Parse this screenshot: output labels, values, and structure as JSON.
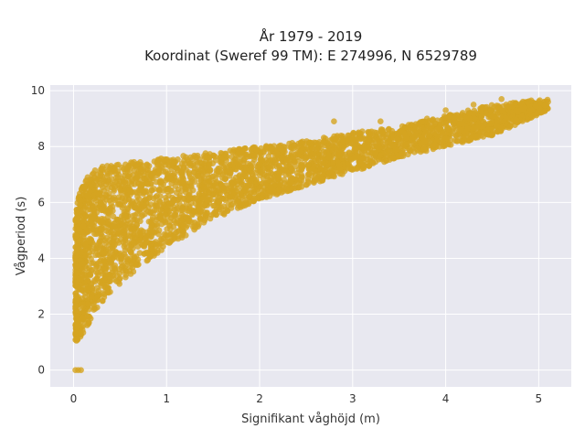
{
  "chart_data": {
    "type": "scatter",
    "title_line1": "År 1979 - 2019",
    "title_line2": "Koordinat (Sweref 99 TM): E 274996, N 6529789",
    "xlabel": "Signifikant våghöjd (m)",
    "ylabel": "Vågperiod (s)",
    "xlim": [
      -0.25,
      5.35
    ],
    "ylim": [
      -0.6,
      10.2
    ],
    "xticks": [
      "0",
      "1",
      "2",
      "3",
      "4",
      "5"
    ],
    "yticks": [
      "0",
      "2",
      "4",
      "6",
      "8",
      "10"
    ],
    "grid": true,
    "background_color": "#e8e8f0",
    "marker_color": "#d4a421",
    "envelope": [
      {
        "x": 0.02,
        "y_low": 1.0,
        "y_high": 5.6
      },
      {
        "x": 0.08,
        "y_low": 1.2,
        "y_high": 6.6
      },
      {
        "x": 0.15,
        "y_low": 1.6,
        "y_high": 7.0
      },
      {
        "x": 0.3,
        "y_low": 2.4,
        "y_high": 7.3
      },
      {
        "x": 0.5,
        "y_low": 3.1,
        "y_high": 7.4
      },
      {
        "x": 0.75,
        "y_low": 3.8,
        "y_high": 7.5
      },
      {
        "x": 1.0,
        "y_low": 4.4,
        "y_high": 7.6
      },
      {
        "x": 1.5,
        "y_low": 5.4,
        "y_high": 7.8
      },
      {
        "x": 2.0,
        "y_low": 6.1,
        "y_high": 8.0
      },
      {
        "x": 2.5,
        "y_low": 6.6,
        "y_high": 8.2
      },
      {
        "x": 3.0,
        "y_low": 7.1,
        "y_high": 8.5
      },
      {
        "x": 3.5,
        "y_low": 7.6,
        "y_high": 8.7
      },
      {
        "x": 4.0,
        "y_low": 8.0,
        "y_high": 9.1
      },
      {
        "x": 4.5,
        "y_low": 8.4,
        "y_high": 9.5
      },
      {
        "x": 5.1,
        "y_low": 9.3,
        "y_high": 9.7
      }
    ],
    "outliers": [
      {
        "x": 5.1,
        "y": 9.6
      },
      {
        "x": 4.92,
        "y": 9.65
      },
      {
        "x": 4.85,
        "y": 9.4
      },
      {
        "x": 4.78,
        "y": 9.25
      },
      {
        "x": 4.65,
        "y": 9.5
      },
      {
        "x": 4.6,
        "y": 9.7
      },
      {
        "x": 4.3,
        "y": 9.5
      },
      {
        "x": 4.25,
        "y": 9.2
      },
      {
        "x": 4.0,
        "y": 9.3
      },
      {
        "x": 3.8,
        "y": 9.0
      },
      {
        "x": 2.8,
        "y": 8.9
      },
      {
        "x": 3.3,
        "y": 8.9
      },
      {
        "x": 0.02,
        "y": 0
      },
      {
        "x": 0.05,
        "y": 0
      },
      {
        "x": 0.08,
        "y": 0
      }
    ]
  }
}
